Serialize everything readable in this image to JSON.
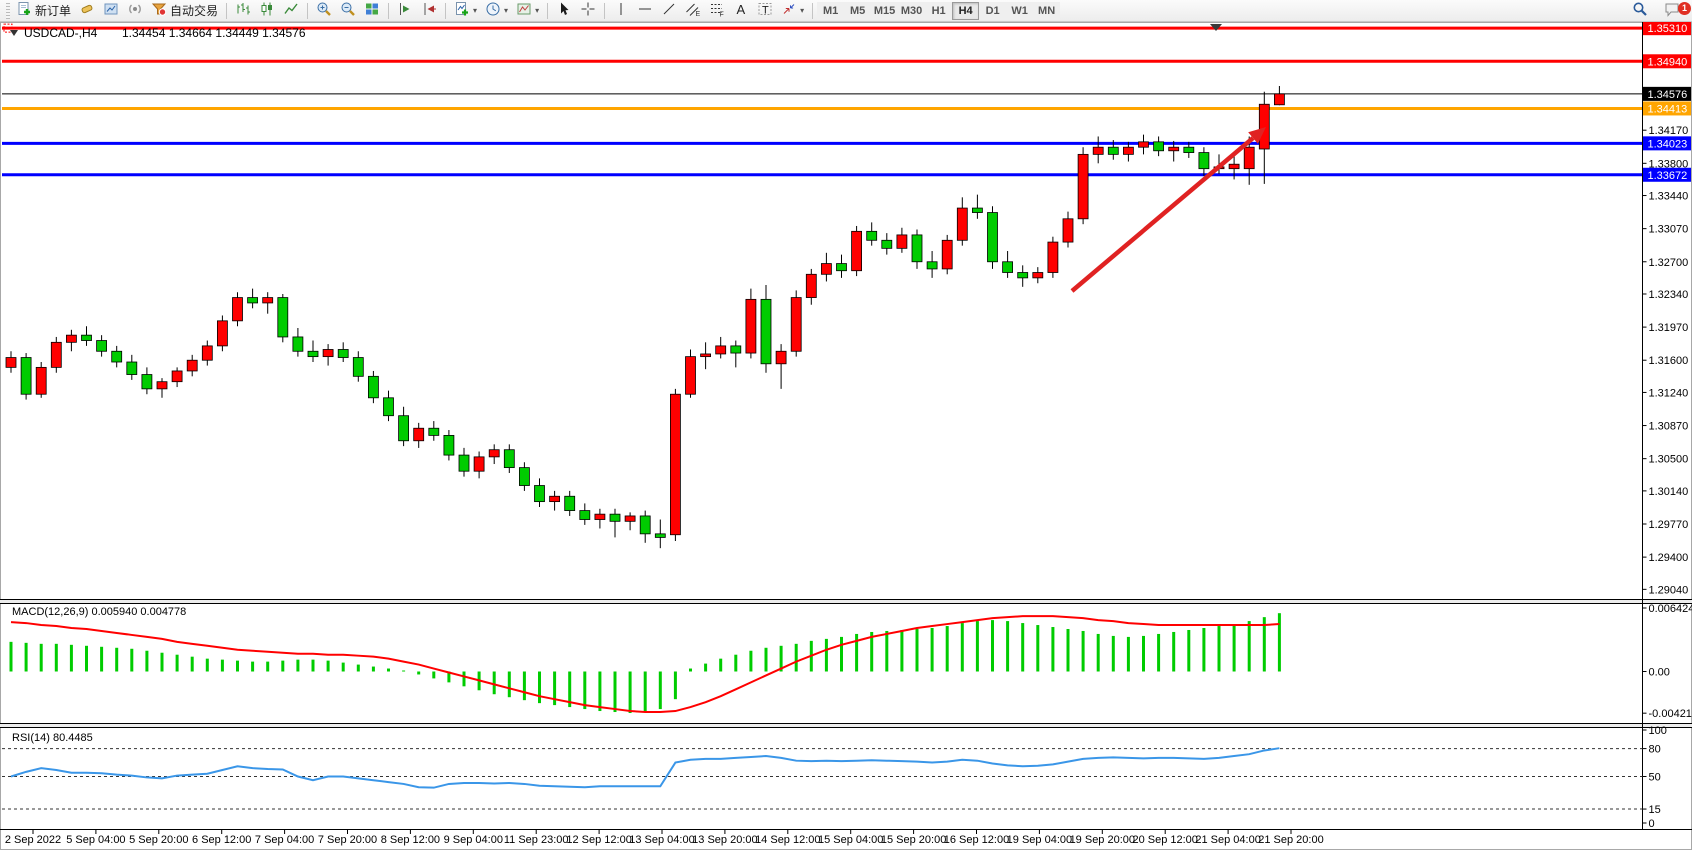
{
  "toolbar": {
    "new_order_label": "新订单",
    "autotrading_label": "自动交易",
    "timeframes": [
      "M1",
      "M5",
      "M15",
      "M30",
      "H1",
      "H4",
      "D1",
      "W1",
      "MN"
    ],
    "active_timeframe": "H4",
    "notification_count": "1"
  },
  "chart": {
    "title_symbol": "USDCAD-,H4",
    "title_ohlc": "1.34454 1.34664 1.34449 1.34576",
    "price_ticks": [
      "1.34170",
      "1.33800",
      "1.33440",
      "1.33070",
      "1.32700",
      "1.32340",
      "1.31970",
      "1.31600",
      "1.31240",
      "1.30870",
      "1.30500",
      "1.30140",
      "1.29770",
      "1.29400",
      "1.29040"
    ],
    "badges": [
      {
        "label": "1.35310",
        "price": 1.3531,
        "color": "#ff0000"
      },
      {
        "label": "1.34940",
        "price": 1.3494,
        "color": "#ff0000"
      },
      {
        "label": "1.34576",
        "price": 1.34576,
        "color": "#000000"
      },
      {
        "label": "1.34413",
        "price": 1.34413,
        "color": "#ffa500"
      },
      {
        "label": "1.34023",
        "price": 1.34023,
        "color": "#0000ff"
      },
      {
        "label": "1.33672",
        "price": 1.33672,
        "color": "#0000ff"
      }
    ],
    "time_labels": [
      "2 Sep 2022",
      "5 Sep 04:00",
      "5 Sep 20:00",
      "6 Sep 12:00",
      "7 Sep 04:00",
      "7 Sep 20:00",
      "8 Sep 12:00",
      "9 Sep 04:00",
      "11 Sep 23:00",
      "12 Sep 12:00",
      "13 Sep 04:00",
      "13 Sep 20:00",
      "14 Sep 12:00",
      "15 Sep 04:00",
      "15 Sep 20:00",
      "16 Sep 12:00",
      "19 Sep 04:00",
      "19 Sep 20:00",
      "20 Sep 12:00",
      "21 Sep 04:00",
      "21 Sep 20:00"
    ]
  },
  "macd_panel": {
    "label": "MACD(12,26,9) 0.005940 0.004778",
    "axis": [
      {
        "label": "0.006424",
        "value": 0.006424
      },
      {
        "label": "0.00",
        "value": 0
      },
      {
        "label": "-0.004217",
        "value": -0.004217
      }
    ]
  },
  "rsi_panel": {
    "label": "RSI(14) 80.4485",
    "axis": [
      {
        "label": "100",
        "value": 100
      },
      {
        "label": "80",
        "value": 80
      },
      {
        "label": "50",
        "value": 50
      },
      {
        "label": "15",
        "value": 15
      },
      {
        "label": "0",
        "value": 0
      }
    ],
    "levels": [
      80,
      50,
      15
    ]
  },
  "chart_data": {
    "type": "candlestick",
    "symbol": "USDCAD-",
    "timeframe": "H4",
    "bid": 1.34576,
    "bull_color": "#ff0000",
    "bear_color": "#00cc00",
    "candles": [
      [
        1.3152,
        1.317,
        1.3146,
        1.3163
      ],
      [
        1.3163,
        1.3168,
        1.3116,
        1.3122
      ],
      [
        1.3122,
        1.3158,
        1.3118,
        1.3152
      ],
      [
        1.3152,
        1.3186,
        1.3146,
        1.318
      ],
      [
        1.318,
        1.3194,
        1.317,
        1.3188
      ],
      [
        1.3188,
        1.3198,
        1.3176,
        1.3182
      ],
      [
        1.3182,
        1.3188,
        1.3164,
        1.317
      ],
      [
        1.317,
        1.3176,
        1.3152,
        1.3158
      ],
      [
        1.3158,
        1.3166,
        1.3138,
        1.3144
      ],
      [
        1.3144,
        1.3152,
        1.3122,
        1.3128
      ],
      [
        1.3128,
        1.314,
        1.3118,
        1.3136
      ],
      [
        1.3136,
        1.3152,
        1.313,
        1.3148
      ],
      [
        1.3148,
        1.3166,
        1.3142,
        1.316
      ],
      [
        1.316,
        1.3182,
        1.3154,
        1.3176
      ],
      [
        1.3176,
        1.321,
        1.317,
        1.3204
      ],
      [
        1.3204,
        1.3236,
        1.3198,
        1.323
      ],
      [
        1.323,
        1.324,
        1.3218,
        1.3224
      ],
      [
        1.3224,
        1.3236,
        1.3212,
        1.323
      ],
      [
        1.323,
        1.3234,
        1.318,
        1.3186
      ],
      [
        1.3186,
        1.3196,
        1.3164,
        1.317
      ],
      [
        1.317,
        1.3182,
        1.3158,
        1.3164
      ],
      [
        1.3164,
        1.3178,
        1.3154,
        1.3172
      ],
      [
        1.3172,
        1.318,
        1.3158,
        1.3163
      ],
      [
        1.3163,
        1.317,
        1.3136,
        1.3142
      ],
      [
        1.3142,
        1.3148,
        1.3112,
        1.3118
      ],
      [
        1.3118,
        1.3126,
        1.3092,
        1.3098
      ],
      [
        1.3098,
        1.3108,
        1.3064,
        1.307
      ],
      [
        1.307,
        1.309,
        1.3062,
        1.3084
      ],
      [
        1.3084,
        1.3092,
        1.307,
        1.3076
      ],
      [
        1.3076,
        1.3082,
        1.3048,
        1.3054
      ],
      [
        1.3054,
        1.3062,
        1.303,
        1.3036
      ],
      [
        1.3036,
        1.3058,
        1.3028,
        1.3052
      ],
      [
        1.3052,
        1.3066,
        1.3044,
        1.306
      ],
      [
        1.306,
        1.3066,
        1.3034,
        1.304
      ],
      [
        1.304,
        1.3046,
        1.3014,
        1.302
      ],
      [
        1.302,
        1.3028,
        1.2996,
        1.3002
      ],
      [
        1.3002,
        1.3014,
        1.2992,
        1.3008
      ],
      [
        1.3008,
        1.3014,
        1.2986,
        1.2992
      ],
      [
        1.2992,
        1.3,
        1.2976,
        1.2982
      ],
      [
        1.2982,
        1.2994,
        1.2972,
        1.2988
      ],
      [
        1.2988,
        1.2994,
        1.2962,
        1.298
      ],
      [
        1.298,
        1.299,
        1.297,
        1.2986
      ],
      [
        1.2986,
        1.2992,
        1.2956,
        1.2966
      ],
      [
        1.2966,
        1.2982,
        1.295,
        1.2962
      ],
      [
        1.2965,
        1.3128,
        1.2958,
        1.3122
      ],
      [
        1.3122,
        1.3172,
        1.3118,
        1.3164
      ],
      [
        1.3164,
        1.318,
        1.315,
        1.3167
      ],
      [
        1.3167,
        1.3186,
        1.3162,
        1.3176
      ],
      [
        1.3176,
        1.3182,
        1.3152,
        1.3168
      ],
      [
        1.3168,
        1.324,
        1.3162,
        1.3228
      ],
      [
        1.3228,
        1.3244,
        1.3146,
        1.3156
      ],
      [
        1.3156,
        1.3178,
        1.3128,
        1.317
      ],
      [
        1.317,
        1.3238,
        1.3164,
        1.323
      ],
      [
        1.323,
        1.3262,
        1.3222,
        1.3256
      ],
      [
        1.3256,
        1.328,
        1.3248,
        1.3268
      ],
      [
        1.3268,
        1.3278,
        1.3252,
        1.326
      ],
      [
        1.326,
        1.331,
        1.3254,
        1.3304
      ],
      [
        1.3304,
        1.3314,
        1.3288,
        1.3294
      ],
      [
        1.3294,
        1.3302,
        1.3278,
        1.3285
      ],
      [
        1.3285,
        1.3308,
        1.328,
        1.33
      ],
      [
        1.33,
        1.3306,
        1.3262,
        1.327
      ],
      [
        1.327,
        1.3282,
        1.3252,
        1.3262
      ],
      [
        1.3262,
        1.33,
        1.3256,
        1.3294
      ],
      [
        1.3294,
        1.3342,
        1.3288,
        1.333
      ],
      [
        1.333,
        1.3345,
        1.3318,
        1.3325
      ],
      [
        1.3325,
        1.3332,
        1.3262,
        1.327
      ],
      [
        1.327,
        1.3282,
        1.3252,
        1.3258
      ],
      [
        1.3258,
        1.3266,
        1.3242,
        1.3252
      ],
      [
        1.3252,
        1.3264,
        1.3246,
        1.3258
      ],
      [
        1.3258,
        1.3298,
        1.3252,
        1.3292
      ],
      [
        1.3292,
        1.3326,
        1.3286,
        1.3318
      ],
      [
        1.3318,
        1.3398,
        1.3312,
        1.339
      ],
      [
        1.339,
        1.341,
        1.338,
        1.3398
      ],
      [
        1.3398,
        1.3406,
        1.3384,
        1.339
      ],
      [
        1.339,
        1.3404,
        1.3382,
        1.3398
      ],
      [
        1.3398,
        1.3412,
        1.339,
        1.3404
      ],
      [
        1.3404,
        1.341,
        1.3388,
        1.3394
      ],
      [
        1.3394,
        1.3405,
        1.3382,
        1.3398
      ],
      [
        1.3398,
        1.3404,
        1.3386,
        1.3392
      ],
      [
        1.3392,
        1.3398,
        1.3366,
        1.3374
      ],
      [
        1.3374,
        1.339,
        1.3368,
        1.3376
      ],
      [
        1.3374,
        1.3388,
        1.3362,
        1.3379
      ],
      [
        1.3374,
        1.341,
        1.3356,
        1.3398
      ],
      [
        1.3396,
        1.346,
        1.3357,
        1.3446
      ],
      [
        1.34454,
        1.34664,
        1.34449,
        1.34576
      ]
    ],
    "hlines": [
      {
        "price": 1.3531,
        "color": "#ff0000"
      },
      {
        "price": 1.3494,
        "color": "#ff0000"
      },
      {
        "price": 1.34413,
        "color": "#ffa500"
      },
      {
        "price": 1.34023,
        "color": "#0000ff"
      },
      {
        "price": 1.33672,
        "color": "#0000ff"
      }
    ],
    "arrow": {
      "from": [
        1072,
        291
      ],
      "to": [
        1266,
        127
      ],
      "color": "#e02222"
    },
    "macd": {
      "histogram_color": "#00cc00",
      "signal_color": "#ff0000",
      "histogram": [
        0.003,
        0.0029,
        0.0028,
        0.0028,
        0.0027,
        0.0026,
        0.0025,
        0.0024,
        0.0023,
        0.0021,
        0.0019,
        0.0017,
        0.0015,
        0.0013,
        0.0012,
        0.0011,
        0.001,
        0.001,
        0.0011,
        0.0012,
        0.0012,
        0.0011,
        0.0009,
        0.0007,
        0.0005,
        0.0003,
        0.0001,
        -0.0003,
        -0.0007,
        -0.0011,
        -0.0015,
        -0.0019,
        -0.0023,
        -0.0026,
        -0.0029,
        -0.0032,
        -0.0034,
        -0.0036,
        -0.0038,
        -0.004,
        -0.0041,
        -0.0042,
        -0.0041,
        -0.0038,
        -0.0028,
        0.0003,
        0.0008,
        0.0013,
        0.0017,
        0.0021,
        0.0024,
        0.0026,
        0.0028,
        0.0031,
        0.0033,
        0.0035,
        0.0038,
        0.004,
        0.0041,
        0.0042,
        0.0043,
        0.0044,
        0.0046,
        0.0049,
        0.0051,
        0.0052,
        0.0051,
        0.0049,
        0.0047,
        0.0045,
        0.0043,
        0.0041,
        0.0038,
        0.0036,
        0.0035,
        0.0036,
        0.0038,
        0.004,
        0.0042,
        0.0044,
        0.0046,
        0.0048,
        0.0051,
        0.0055,
        0.0059
      ],
      "signal": [
        0.005,
        0.0049,
        0.0047,
        0.0046,
        0.0044,
        0.0043,
        0.0041,
        0.0039,
        0.0037,
        0.0035,
        0.0033,
        0.003,
        0.0028,
        0.0026,
        0.0024,
        0.0022,
        0.0021,
        0.002,
        0.0019,
        0.0018,
        0.0018,
        0.0017,
        0.0017,
        0.0016,
        0.0015,
        0.0013,
        0.001,
        0.0007,
        0.0003,
        -0.0001,
        -0.0005,
        -0.0009,
        -0.0013,
        -0.0017,
        -0.0021,
        -0.0025,
        -0.0028,
        -0.0031,
        -0.0034,
        -0.0036,
        -0.0038,
        -0.004,
        -0.0041,
        -0.0041,
        -0.004,
        -0.0036,
        -0.0031,
        -0.0025,
        -0.0018,
        -0.0011,
        -0.0004,
        0.0003,
        0.001,
        0.0016,
        0.0022,
        0.0027,
        0.0031,
        0.0035,
        0.0038,
        0.0041,
        0.0044,
        0.0046,
        0.0048,
        0.005,
        0.0052,
        0.0054,
        0.0055,
        0.0056,
        0.0056,
        0.0056,
        0.0055,
        0.0054,
        0.0052,
        0.0051,
        0.0049,
        0.0048,
        0.0047,
        0.0047,
        0.0047,
        0.0047,
        0.0047,
        0.0047,
        0.0047,
        0.0047,
        0.0048
      ]
    },
    "rsi": {
      "color": "#3a96e8",
      "values": [
        50,
        55,
        59,
        57,
        54,
        54,
        53.5,
        52,
        51,
        49,
        48,
        51,
        52,
        53,
        57,
        61,
        59,
        58,
        57.5,
        50,
        46,
        50,
        50,
        48,
        46,
        44,
        42,
        38.5,
        38,
        42,
        43,
        43,
        42.5,
        43,
        42,
        40,
        39.5,
        39,
        38.5,
        39.5,
        39.5,
        39.5,
        39.5,
        39.5,
        65,
        68,
        69,
        69,
        70,
        71,
        72,
        70,
        67,
        66.5,
        67,
        66.5,
        67,
        67.5,
        67,
        66.5,
        66,
        65,
        66,
        68,
        67,
        64,
        62,
        61,
        61.5,
        63,
        66,
        69,
        70,
        70.5,
        70,
        69.5,
        70,
        70,
        69.5,
        69,
        70,
        72,
        74,
        78,
        80.4485
      ]
    }
  }
}
